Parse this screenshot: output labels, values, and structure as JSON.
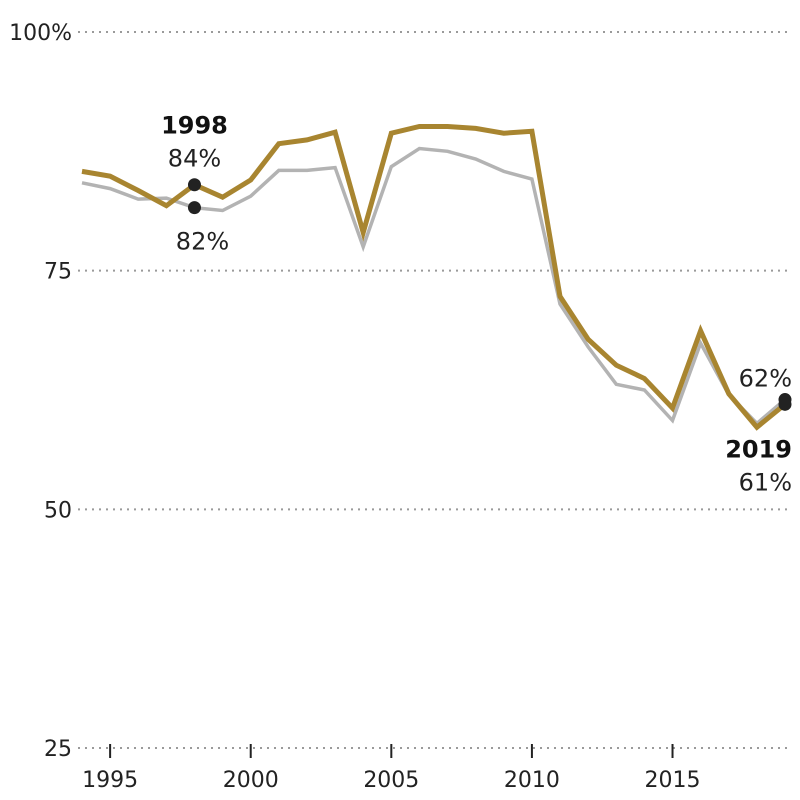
{
  "chart_data": {
    "type": "line",
    "title": "",
    "xlabel": "",
    "ylabel": "",
    "x": [
      1994,
      1995,
      1996,
      1997,
      1998,
      1999,
      2000,
      2001,
      2002,
      2003,
      2004,
      2005,
      2006,
      2007,
      2008,
      2009,
      2010,
      2011,
      2012,
      2013,
      2014,
      2015,
      2016,
      2017,
      2018,
      2019
    ],
    "xlim": [
      1994,
      2019
    ],
    "xticks": [
      1995,
      2000,
      2005,
      2010,
      2015
    ],
    "xtick_labels": [
      "1995",
      "2000",
      "2005",
      "2010",
      "2015"
    ],
    "ylim": [
      25,
      100
    ],
    "yticks": [
      25,
      50,
      75,
      100
    ],
    "ytick_labels": [
      "25",
      "50",
      "75",
      "100%"
    ],
    "grid": true,
    "series": [
      {
        "color": "#a88530",
        "values": [
          85.4,
          84.9,
          83.4,
          81.8,
          84.0,
          82.7,
          84.5,
          88.3,
          88.7,
          89.5,
          79.0,
          89.4,
          90.1,
          90.1,
          89.9,
          89.4,
          89.6,
          72.3,
          67.8,
          65.1,
          63.7,
          60.6,
          68.7,
          62.1,
          58.6,
          61.0
        ]
      },
      {
        "color": "#b3b3b3",
        "values": [
          84.2,
          83.6,
          82.5,
          82.6,
          81.6,
          81.3,
          82.8,
          85.5,
          85.5,
          85.8,
          77.5,
          85.9,
          87.8,
          87.5,
          86.7,
          85.4,
          84.6,
          71.5,
          67.0,
          63.1,
          62.5,
          59.3,
          67.4,
          62.0,
          59.0,
          61.5
        ]
      }
    ],
    "annotations": [
      {
        "year_label": "1998",
        "value_label": "84%",
        "x": 1998,
        "y": 84.0,
        "series": 0
      },
      {
        "value_label": "82%",
        "x": 1998,
        "y": 81.6,
        "series": 1
      },
      {
        "value_label": "62%",
        "x": 2019,
        "y": 61.5,
        "series": 1
      },
      {
        "year_label": "2019",
        "value_label": "61%",
        "x": 2019,
        "y": 61.0,
        "series": 0
      }
    ]
  }
}
